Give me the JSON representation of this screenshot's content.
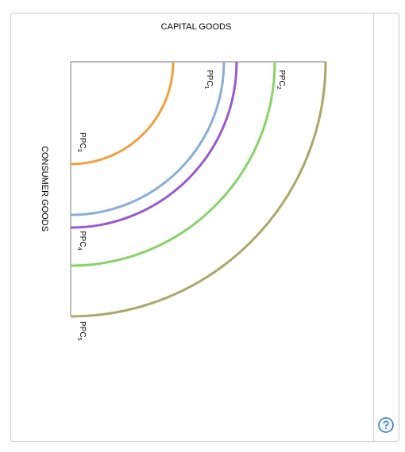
{
  "diagram": {
    "x_axis_title": "CAPITAL GOODS",
    "y_axis_title": "CONSUMER GOODS",
    "curves": [
      {
        "id": "ppc3",
        "name": "PPC",
        "sub": "3",
        "color": "#f0a040"
      },
      {
        "id": "ppc1",
        "name": "PPC",
        "sub": "1",
        "color": "#8aaed6"
      },
      {
        "id": "ppc4",
        "name": "PPC",
        "sub": "4",
        "color": "#9b59d0"
      },
      {
        "id": "ppc2",
        "name": "PPC",
        "sub": "2",
        "color": "#88d36a"
      },
      {
        "id": "ppc5",
        "name": "PPC",
        "sub": "5",
        "color": "#a8a868"
      }
    ]
  },
  "help": {
    "icon": "help-icon",
    "color": "#2d74b8"
  }
}
